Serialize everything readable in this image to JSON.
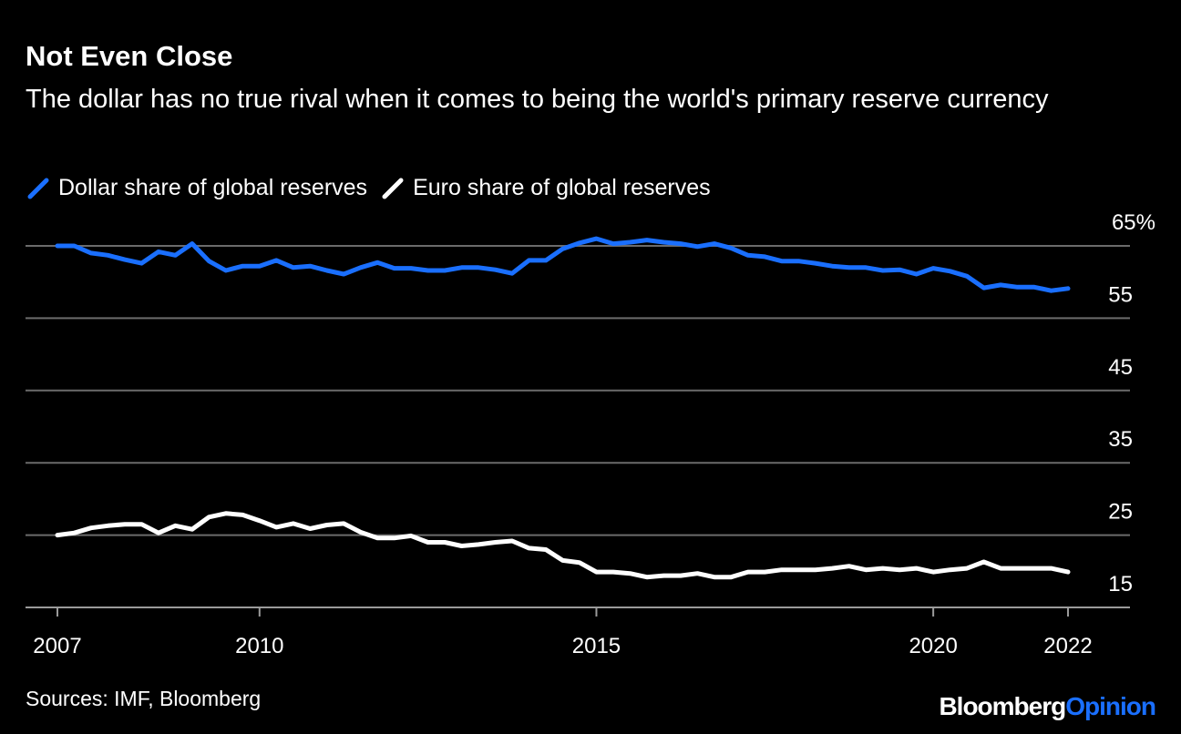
{
  "chart_data": {
    "type": "line",
    "title": "Not Even Close",
    "subtitle": "The dollar has no true rival when it comes to being the world's primary reserve currency",
    "xlabel": "",
    "ylabel": "",
    "xlim": [
      2007,
      2022
    ],
    "ylim": [
      15,
      65
    ],
    "x_ticks": [
      2007,
      2010,
      2015,
      2020,
      2022
    ],
    "x_tick_labels": [
      "2007",
      "2010",
      "2015",
      "2020",
      "2022"
    ],
    "y_ticks": [
      65,
      55,
      45,
      35,
      25,
      15
    ],
    "y_tick_labels": [
      "65%",
      "55",
      "45",
      "35",
      "25",
      "15"
    ],
    "grid": true,
    "legend_position": "top-left",
    "x_start": 2007,
    "x_step": 0.25,
    "series": [
      {
        "name": "Dollar share of global reserves",
        "color": "#1a6fff",
        "values": [
          65.0,
          65.0,
          64.0,
          63.7,
          63.1,
          62.6,
          64.2,
          63.7,
          65.3,
          62.9,
          61.6,
          62.2,
          62.2,
          63.0,
          62.0,
          62.2,
          61.6,
          61.1,
          62.0,
          62.7,
          61.9,
          61.9,
          61.6,
          61.6,
          62.0,
          62.0,
          61.7,
          61.2,
          63.0,
          63.0,
          64.6,
          65.4,
          66.0,
          65.3,
          65.5,
          65.8,
          65.5,
          65.3,
          64.9,
          65.3,
          64.7,
          63.7,
          63.5,
          62.9,
          62.9,
          62.6,
          62.2,
          62.0,
          62.0,
          61.6,
          61.7,
          61.1,
          61.9,
          61.5,
          60.8,
          59.2,
          59.6,
          59.3,
          59.3,
          58.8,
          59.1
        ]
      },
      {
        "name": "Euro share of global reserves",
        "color": "#ffffff",
        "values": [
          25.0,
          25.3,
          26.0,
          26.3,
          26.5,
          26.5,
          25.3,
          26.3,
          25.8,
          27.5,
          28.0,
          27.8,
          27.0,
          26.1,
          26.6,
          25.9,
          26.4,
          26.6,
          25.4,
          24.6,
          24.6,
          24.9,
          24.0,
          24.0,
          23.5,
          23.7,
          24.0,
          24.2,
          23.2,
          23.0,
          21.5,
          21.2,
          19.9,
          19.9,
          19.7,
          19.2,
          19.4,
          19.4,
          19.7,
          19.2,
          19.2,
          19.9,
          19.9,
          20.2,
          20.2,
          20.2,
          20.4,
          20.7,
          20.2,
          20.4,
          20.2,
          20.4,
          19.9,
          20.2,
          20.4,
          21.3,
          20.4,
          20.4,
          20.4,
          20.4,
          19.9
        ]
      }
    ]
  },
  "source": "Sources: IMF, Bloomberg",
  "logo": {
    "part1": "Bloomberg",
    "part2": "Opinion",
    "part1_color": "#ffffff",
    "part2_color": "#1a6fff"
  },
  "colors": {
    "grid": "#6b6b6b",
    "background": "#000000"
  }
}
